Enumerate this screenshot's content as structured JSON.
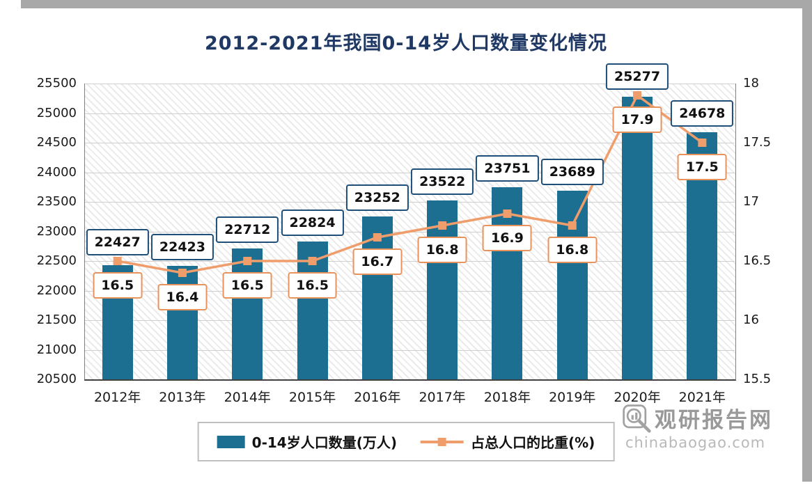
{
  "chart_data": {
    "type": "bar",
    "combo": "bar+line",
    "title": "2012-2021年我国0-14岁人口数量变化情况",
    "categories": [
      "2012年",
      "2013年",
      "2014年",
      "2015年",
      "2016年",
      "2017年",
      "2018年",
      "2019年",
      "2020年",
      "2021年"
    ],
    "series": [
      {
        "name": "0-14岁人口数量(万人)",
        "type": "bar",
        "axis": "left",
        "color": "#1d6f92",
        "values": [
          22427,
          22423,
          22712,
          22824,
          23252,
          23522,
          23751,
          23689,
          25277,
          24678
        ]
      },
      {
        "name": "占总人口的比重(%)",
        "type": "line",
        "axis": "right",
        "color": "#f09d6c",
        "values": [
          16.5,
          16.4,
          16.5,
          16.5,
          16.7,
          16.8,
          16.9,
          16.8,
          17.9,
          17.5
        ]
      }
    ],
    "left_axis": {
      "min": 20500,
      "max": 25500,
      "step": 500
    },
    "right_axis": {
      "min": 15.5,
      "max": 18,
      "step": 0.5
    },
    "grid": true,
    "legend_position": "bottom",
    "title_color": "#1f3864",
    "bar_label_border": "#1f4e79",
    "line_label_border": "#e8935c"
  },
  "watermark": {
    "brand": "观研报告网",
    "site": "chinabaogao.com"
  }
}
